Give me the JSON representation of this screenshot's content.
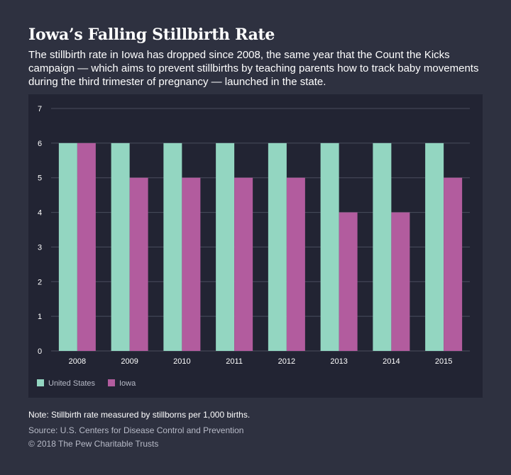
{
  "header": {
    "title": "Iowa’s Falling Stillbirth Rate",
    "subtitle": "The stillbirth rate in Iowa has dropped since 2008, the same year that the Count the Kicks campaign — which aims to prevent stillbirths by teaching parents how to track baby movements during the third trimester of pregnancy — launched in the state."
  },
  "chart_data": {
    "type": "bar",
    "categories": [
      "2008",
      "2009",
      "2010",
      "2011",
      "2012",
      "2013",
      "2014",
      "2015"
    ],
    "series": [
      {
        "name": "United States",
        "color": "#93d6c1",
        "values": [
          6,
          6,
          6,
          6,
          6,
          6,
          6,
          6
        ]
      },
      {
        "name": "Iowa",
        "color": "#b25c9e",
        "values": [
          6,
          5,
          5,
          5,
          5,
          4,
          4,
          5
        ]
      }
    ],
    "ylim": [
      0,
      7
    ],
    "yticks": [
      0,
      1,
      2,
      3,
      4,
      5,
      6,
      7
    ],
    "grid": true,
    "legend": "bottom-left"
  },
  "footer": {
    "note": "Note: Stillbirth rate measured by stillborns per 1,000 births.",
    "source": "Source: U.S. Centers for Disease Control and Prevention",
    "copyright": "© 2018 The Pew Charitable Trusts"
  }
}
